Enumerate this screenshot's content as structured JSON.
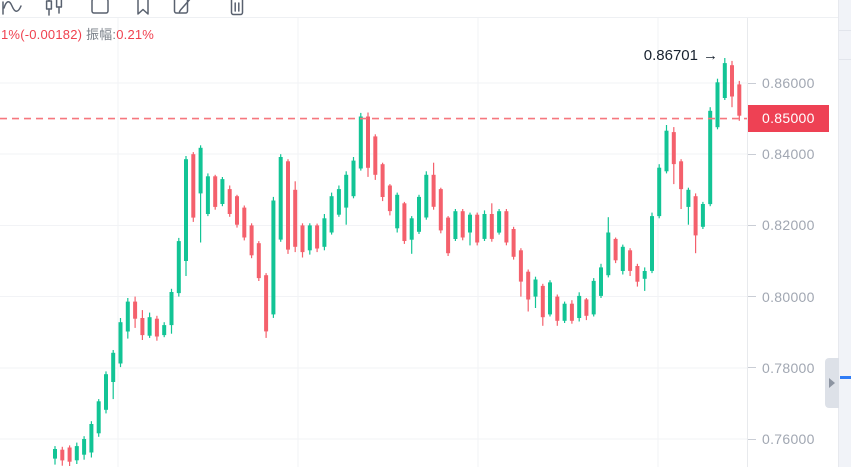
{
  "toolbar": {
    "icons": [
      "line-chart-icon",
      "candlestick-icon",
      "snapshot-icon",
      "bookmark-icon",
      "edit-icon",
      "delete-icon"
    ]
  },
  "stats": {
    "change": "1%(-0.00182)",
    "amplitude_label": "振幅:",
    "amplitude_value": "0.21%"
  },
  "annotation": {
    "text": "0.86701",
    "arrow": "→",
    "price": 0.86701
  },
  "chart_data": {
    "type": "candlestick",
    "title": "",
    "reference_line": {
      "price": 0.85,
      "label": "0.85000",
      "style": "dashed"
    },
    "y_axis": {
      "labels": [
        {
          "text": "0.86000",
          "price": 0.86
        },
        {
          "text": "0.84000",
          "price": 0.84
        },
        {
          "text": "0.82000",
          "price": 0.82
        },
        {
          "text": "0.80000",
          "price": 0.8
        },
        {
          "text": "0.78000",
          "price": 0.78
        },
        {
          "text": "0.76000",
          "price": 0.76
        }
      ],
      "visible_range": [
        0.752,
        0.878
      ],
      "grid": true
    },
    "high_label": {
      "text": "0.86701",
      "price": 0.86701
    },
    "colors": {
      "up": "#12C495",
      "down": "#F4606C",
      "badge": "#EE4154",
      "ref_line": "#F6777E",
      "grid": "#F2F3F6",
      "stats_red": "#F0414F",
      "stats_gray": "#7A8089",
      "axis_text": "#A1A7B2",
      "annotation_text": "#18222F",
      "blue_marker": "#2F7CF6"
    },
    "candles_format": [
      "open",
      "high",
      "low",
      "close"
    ],
    "candles": [
      [
        0.7545,
        0.758,
        0.7528,
        0.7572
      ],
      [
        0.757,
        0.7578,
        0.7525,
        0.754
      ],
      [
        0.7576,
        0.7582,
        0.7524,
        0.7536
      ],
      [
        0.754,
        0.759,
        0.753,
        0.758
      ],
      [
        0.7556,
        0.7608,
        0.7542,
        0.76
      ],
      [
        0.7562,
        0.765,
        0.7548,
        0.7642
      ],
      [
        0.7616,
        0.7712,
        0.7606,
        0.7706
      ],
      [
        0.7682,
        0.779,
        0.7672,
        0.7782
      ],
      [
        0.776,
        0.785,
        0.7712,
        0.7842
      ],
      [
        0.7812,
        0.794,
        0.7802,
        0.7928
      ],
      [
        0.7902,
        0.7996,
        0.7882,
        0.7986
      ],
      [
        0.7986,
        0.8,
        0.7912,
        0.7938
      ],
      [
        0.794,
        0.7962,
        0.7878,
        0.7892
      ],
      [
        0.789,
        0.7955,
        0.7884,
        0.7942
      ],
      [
        0.7938,
        0.7946,
        0.7876,
        0.7888
      ],
      [
        0.7892,
        0.7928,
        0.7886,
        0.792
      ],
      [
        0.792,
        0.8022,
        0.7896,
        0.8013
      ],
      [
        0.801,
        0.8165,
        0.8,
        0.8156
      ],
      [
        0.81,
        0.8395,
        0.8058,
        0.8386
      ],
      [
        0.84,
        0.8406,
        0.821,
        0.8222
      ],
      [
        0.829,
        0.8425,
        0.8152,
        0.8418
      ],
      [
        0.8232,
        0.8346,
        0.8226,
        0.8338
      ],
      [
        0.8338,
        0.8342,
        0.8244,
        0.8252
      ],
      [
        0.826,
        0.8336,
        0.8254,
        0.833
      ],
      [
        0.8302,
        0.8312,
        0.8224,
        0.8232
      ],
      [
        0.8282,
        0.8286,
        0.8194,
        0.8202
      ],
      [
        0.825,
        0.8256,
        0.8158,
        0.8166
      ],
      [
        0.82,
        0.8206,
        0.8108,
        0.8116
      ],
      [
        0.815,
        0.8156,
        0.8044,
        0.8052
      ],
      [
        0.806,
        0.8066,
        0.7884,
        0.7902
      ],
      [
        0.795,
        0.828,
        0.794,
        0.827
      ],
      [
        0.816,
        0.84,
        0.8154,
        0.8392
      ],
      [
        0.838,
        0.8386,
        0.812,
        0.8132
      ],
      [
        0.83,
        0.8324,
        0.8125,
        0.814
      ],
      [
        0.82,
        0.8206,
        0.811,
        0.8125
      ],
      [
        0.813,
        0.8206,
        0.8118,
        0.82
      ],
      [
        0.82,
        0.8205,
        0.8125,
        0.8135
      ],
      [
        0.814,
        0.8232,
        0.813,
        0.822
      ],
      [
        0.818,
        0.8292,
        0.8174,
        0.8282
      ],
      [
        0.823,
        0.8312,
        0.8224,
        0.8302
      ],
      [
        0.825,
        0.8352,
        0.8202,
        0.8342
      ],
      [
        0.8282,
        0.8392,
        0.8276,
        0.8382
      ],
      [
        0.836,
        0.8516,
        0.8354,
        0.8506
      ],
      [
        0.8506,
        0.8517,
        0.8336,
        0.8362
      ],
      [
        0.845,
        0.8456,
        0.8328,
        0.8342
      ],
      [
        0.8372,
        0.8376,
        0.8268,
        0.828
      ],
      [
        0.8312,
        0.8316,
        0.8228,
        0.824
      ],
      [
        0.8192,
        0.8292,
        0.818,
        0.8286
      ],
      [
        0.8262,
        0.8266,
        0.8148,
        0.8156
      ],
      [
        0.816,
        0.8226,
        0.812,
        0.822
      ],
      [
        0.8182,
        0.8286,
        0.8176,
        0.828
      ],
      [
        0.8222,
        0.8352,
        0.8216,
        0.8342
      ],
      [
        0.8342,
        0.8376,
        0.8244,
        0.8252
      ],
      [
        0.8302,
        0.8306,
        0.8178,
        0.8186
      ],
      [
        0.8222,
        0.8226,
        0.8114,
        0.8122
      ],
      [
        0.8162,
        0.8246,
        0.8156,
        0.824
      ],
      [
        0.824,
        0.8246,
        0.8158,
        0.8166
      ],
      [
        0.818,
        0.8236,
        0.8144,
        0.823
      ],
      [
        0.823,
        0.8236,
        0.8144,
        0.8152
      ],
      [
        0.8162,
        0.8242,
        0.8156,
        0.8232
      ],
      [
        0.8232,
        0.8262,
        0.8154,
        0.8162
      ],
      [
        0.818,
        0.8246,
        0.8174,
        0.824
      ],
      [
        0.824,
        0.8246,
        0.8144,
        0.8152
      ],
      [
        0.819,
        0.8196,
        0.8104,
        0.8112
      ],
      [
        0.813,
        0.8136,
        0.8,
        0.8042
      ],
      [
        0.807,
        0.8076,
        0.7958,
        0.7992
      ],
      [
        0.8,
        0.8056,
        0.7968,
        0.8048
      ],
      [
        0.803,
        0.8036,
        0.7918,
        0.7942
      ],
      [
        0.795,
        0.8046,
        0.7944,
        0.804
      ],
      [
        0.8,
        0.8006,
        0.7918,
        0.7932
      ],
      [
        0.7932,
        0.7986,
        0.7926,
        0.798
      ],
      [
        0.798,
        0.799,
        0.7924,
        0.7932
      ],
      [
        0.794,
        0.8012,
        0.793,
        0.8002
      ],
      [
        0.7992,
        0.7996,
        0.7934,
        0.7946
      ],
      [
        0.795,
        0.8052,
        0.7944,
        0.8044
      ],
      [
        0.8002,
        0.8092,
        0.7996,
        0.8082
      ],
      [
        0.806,
        0.8223,
        0.8054,
        0.818
      ],
      [
        0.8162,
        0.8166,
        0.8094,
        0.8102
      ],
      [
        0.8072,
        0.8146,
        0.8062,
        0.814
      ],
      [
        0.813,
        0.8136,
        0.8058,
        0.8072
      ],
      [
        0.8086,
        0.8092,
        0.8028,
        0.8042
      ],
      [
        0.805,
        0.8082,
        0.8016,
        0.8072
      ],
      [
        0.8072,
        0.8236,
        0.8066,
        0.8226
      ],
      [
        0.8226,
        0.8372,
        0.822,
        0.8362
      ],
      [
        0.8352,
        0.8482,
        0.8346,
        0.8466
      ],
      [
        0.8462,
        0.8476,
        0.8316,
        0.8372
      ],
      [
        0.838,
        0.8386,
        0.8246,
        0.8302
      ],
      [
        0.8252,
        0.8306,
        0.8202,
        0.83
      ],
      [
        0.8282,
        0.829,
        0.8122,
        0.8172
      ],
      [
        0.8196,
        0.8266,
        0.819,
        0.826
      ],
      [
        0.826,
        0.8532,
        0.8254,
        0.8522
      ],
      [
        0.8476,
        0.8612,
        0.847,
        0.8602
      ],
      [
        0.8558,
        0.86701,
        0.8552,
        0.8656
      ],
      [
        0.865,
        0.8662,
        0.8532,
        0.8562
      ],
      [
        0.8596,
        0.8606,
        0.8494,
        0.8508
      ]
    ]
  },
  "side_panel": {
    "handle_icon": "right-triangle",
    "blue_marker": "price-marker-line"
  }
}
